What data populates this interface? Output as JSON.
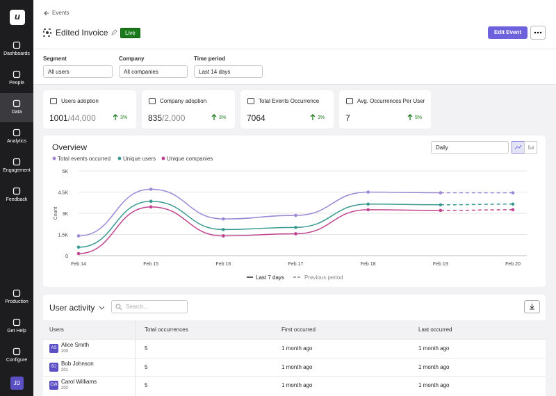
{
  "sidebar": {
    "logo": "u",
    "nav": [
      "Dashboards",
      "People",
      "Data",
      "Analytics",
      "Engagement",
      "Feedback"
    ],
    "bottom": [
      "Production",
      "Get Help",
      "Configure"
    ],
    "avatar": "JD"
  },
  "header": {
    "breadcrumb": "Events",
    "title": "Edited Invoice",
    "status": "Live",
    "primary_button": "Edit Event"
  },
  "filters": [
    {
      "label": "Segment",
      "value": "All users"
    },
    {
      "label": "Company",
      "value": "All companies"
    },
    {
      "label": "Time period",
      "value": "Last 14 days"
    }
  ],
  "stats": [
    {
      "label": "Users adoption",
      "value": "1001",
      "total": "/44,000",
      "change": "3%"
    },
    {
      "label": "Company adoption",
      "value": "835",
      "total": "/2,000",
      "change": "3%"
    },
    {
      "label": "Total Events Occurrence",
      "value": "7064",
      "change": "3%"
    },
    {
      "label": "Avg. Occurrences Per User",
      "value": "7",
      "change": "5%"
    }
  ],
  "overview": {
    "title": "Overview",
    "interval": "Daily"
  },
  "chart_data": {
    "type": "line",
    "y_label": "Count",
    "legend": "top-left",
    "categories": [
      "Feb 14",
      "Feb 15",
      "Feb 16",
      "Feb 17",
      "Feb 18",
      "Feb 19",
      "Feb 20"
    ],
    "series": [
      {
        "name": "Total events occurred",
        "color": "#9b87d6",
        "values": [
          1400,
          4700,
          2600,
          2850,
          4500,
          4450,
          4450
        ]
      },
      {
        "name": "Unique users",
        "color": "#3a9a92",
        "values": [
          600,
          3850,
          1850,
          2000,
          3650,
          3600,
          3650
        ]
      },
      {
        "name": "Unique companies",
        "color": "#c0428e",
        "values": [
          150,
          3450,
          1400,
          1550,
          3250,
          3200,
          3250
        ]
      }
    ],
    "ylim": [
      0,
      6000
    ],
    "yticks": [
      0,
      {
        "value": 1500,
        "label": "1.5K"
      },
      {
        "value": 3000,
        "label": "3K"
      },
      {
        "value": 4500,
        "label": "4.5K"
      },
      {
        "value": 6000,
        "label": "6K"
      }
    ],
    "grid": true,
    "period_legend": [
      "Last 7 days",
      "Previous period"
    ]
  },
  "user_activity": {
    "title": "User activity",
    "search_placeholder": "Search...",
    "table": {
      "columns": [
        "Users",
        "Total occurrences",
        "First occurred",
        "Last occurred"
      ],
      "rows": [
        {
          "initials": "AS",
          "name": "Alice Smith",
          "id": "200",
          "total": "5",
          "first": "1 month ago",
          "last": "1 month ago"
        },
        {
          "initials": "BJ",
          "name": "Bob Johnson",
          "id": "201",
          "total": "5",
          "first": "1 month ago",
          "last": "1 month ago"
        },
        {
          "initials": "CW",
          "name": "Carol Williams",
          "id": "202",
          "total": "5",
          "first": "1 month ago",
          "last": "1 month ago"
        }
      ]
    }
  }
}
